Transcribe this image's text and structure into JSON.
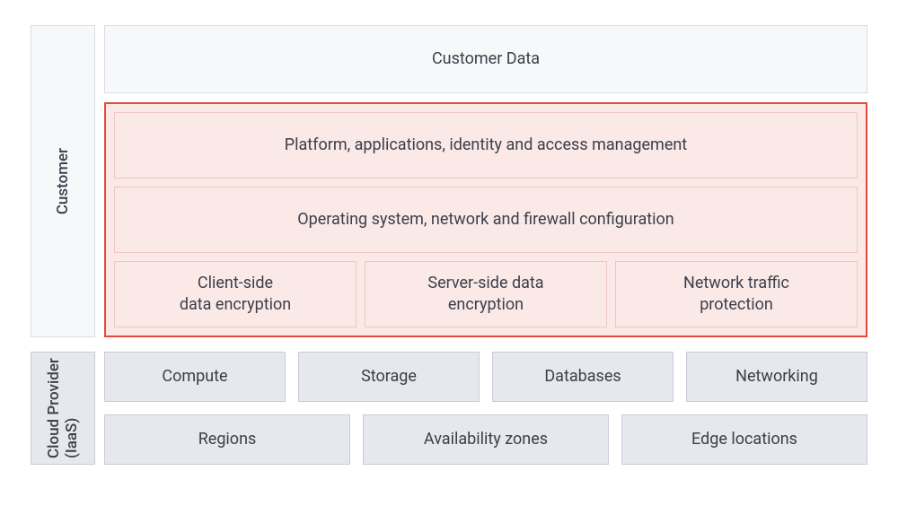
{
  "colors": {
    "page_bg": "#ffffff",
    "text": "#3a3f4a",
    "grey_bg": "#e6e8ed",
    "grey_border": "#c7ccd4",
    "light_grey_bg": "#f7f8fa",
    "light_grey_border": "#d8dde5",
    "highlight_bg": "#fbe9e8",
    "highlight_inner_border": "#eec6c2",
    "highlight_outer_border": "#e44a3c"
  },
  "customer": {
    "side_label": "Customer",
    "data_box": "Customer Data",
    "highlighted": {
      "row1": "Platform, applications, identity and access management",
      "row2": "Operating system, network and firewall configuration",
      "row3": [
        "Client-side\ndata encryption",
        "Server-side data\nencryption",
        "Network traffic\nprotection"
      ]
    }
  },
  "provider": {
    "side_label": "Cloud Provider\n(IaaS)",
    "row1": [
      "Compute",
      "Storage",
      "Databases",
      "Networking"
    ],
    "row2": [
      "Regions",
      "Availability zones",
      "Edge locations"
    ]
  }
}
